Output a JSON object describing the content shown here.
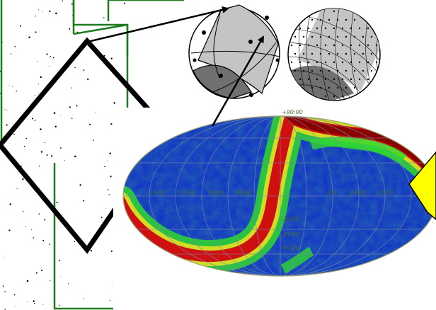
{
  "colors": {
    "frame": "#1d7a1d",
    "arrow": "#000000",
    "yellow_arrow": "#ffff00",
    "sphere_dark": "#707070",
    "sphere_light": "#c4c4c4",
    "map_background": "#1030c8"
  },
  "icons": {
    "star_field": "star-field-icon",
    "healpix_sphere_coarse": "sphere-coarse-icon",
    "healpix_sphere_fine": "sphere-fine-icon",
    "sky_map": "all-sky-map-icon"
  },
  "sky_map": {
    "top_label": "+90:00",
    "ra_labels": [
      "14:00",
      "12:00",
      "10:00",
      "08:00",
      "24:00",
      "22:00"
    ],
    "dec_labels": [
      "-30:00",
      "-45:00",
      "-60:00"
    ],
    "center_ra_label": ":00"
  }
}
